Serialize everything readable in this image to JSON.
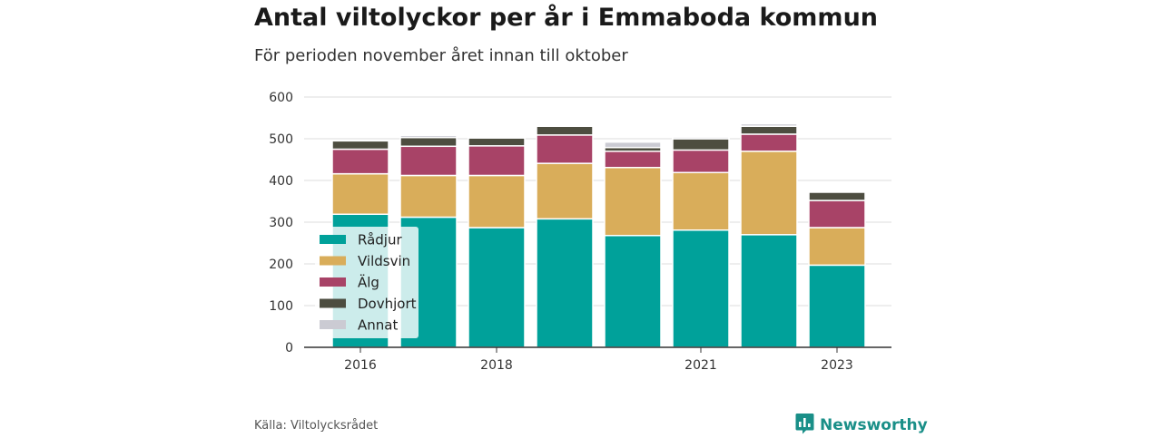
{
  "header": {
    "title": "Antal viltolyckor per år i Emmaboda kommun",
    "subtitle": "För perioden november året innan till oktober"
  },
  "footer": {
    "source": "Källa: Viltolycksrådet",
    "brand": "Newsworthy",
    "brand_icon": "bar-chart-logo-icon",
    "brand_color": "#1a8f88"
  },
  "chart_data": {
    "type": "bar",
    "stacked": true,
    "categories": [
      "2016",
      "2017",
      "2018",
      "2019",
      "2020",
      "2021",
      "2022",
      "2023"
    ],
    "tick_labels_shown": [
      "2016",
      "2018",
      "2021",
      "2023"
    ],
    "series": [
      {
        "name": "Rådjur",
        "color": "#00a19a",
        "values": [
          319,
          312,
          287,
          308,
          268,
          281,
          270,
          197
        ]
      },
      {
        "name": "Vildsvin",
        "color": "#d9ad5a",
        "values": [
          97,
          100,
          125,
          133,
          163,
          138,
          200,
          90
        ]
      },
      {
        "name": "Älg",
        "color": "#a84367",
        "values": [
          59,
          70,
          71,
          68,
          39,
          54,
          41,
          65
        ]
      },
      {
        "name": "Dovhjort",
        "color": "#4d4d40",
        "values": [
          20,
          21,
          19,
          21,
          9,
          27,
          19,
          20
        ]
      },
      {
        "name": "Annat",
        "color": "#cbcbd3",
        "values": [
          2,
          5,
          1,
          1,
          13,
          4,
          6,
          1
        ]
      }
    ],
    "ylim": [
      0,
      600
    ],
    "yticks": [
      0,
      100,
      200,
      300,
      400,
      500,
      600
    ],
    "grid": true,
    "legend_position": "bottom-left inside"
  }
}
